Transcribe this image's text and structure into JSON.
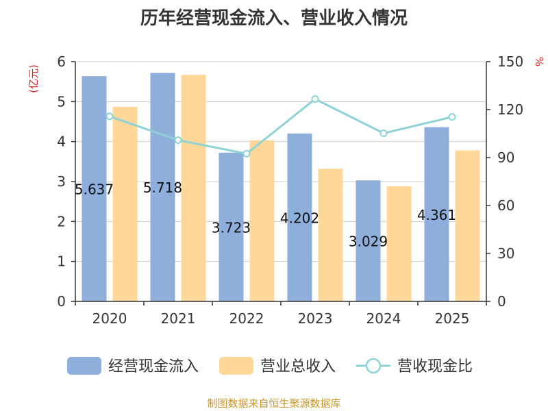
{
  "title": "历年经营现金流入、营业收入情况",
  "source": "制图数据来自恒生聚源数据库",
  "chart_data": {
    "type": "bar",
    "categories": [
      "2020",
      "2021",
      "2022",
      "2023",
      "2024",
      "2025"
    ],
    "series": [
      {
        "name": "经营现金流入",
        "kind": "bar",
        "axis": "left",
        "color": "#8eaedb",
        "values": [
          5.637,
          5.718,
          3.723,
          4.202,
          3.029,
          4.361
        ],
        "labels": [
          "5.637",
          "5.718",
          "3.723",
          "4.202",
          "3.029",
          "4.361"
        ]
      },
      {
        "name": "营业总收入",
        "kind": "bar",
        "axis": "left",
        "color": "#ffd899",
        "values": [
          4.87,
          5.67,
          4.03,
          3.32,
          2.88,
          3.78
        ]
      },
      {
        "name": "营收现金比",
        "kind": "line",
        "axis": "right",
        "color": "#8dd3d3",
        "values": [
          115.8,
          100.9,
          92.4,
          126.6,
          105.2,
          115.4
        ]
      }
    ],
    "y_left": {
      "label": "(亿元)",
      "min": 0,
      "max": 6,
      "ticks": [
        0,
        1,
        2,
        3,
        4,
        5,
        6
      ]
    },
    "y_right": {
      "label": "%",
      "min": 0,
      "max": 150,
      "ticks": [
        0,
        30,
        60,
        90,
        120,
        150
      ]
    },
    "grid": true,
    "legend_position": "bottom"
  }
}
